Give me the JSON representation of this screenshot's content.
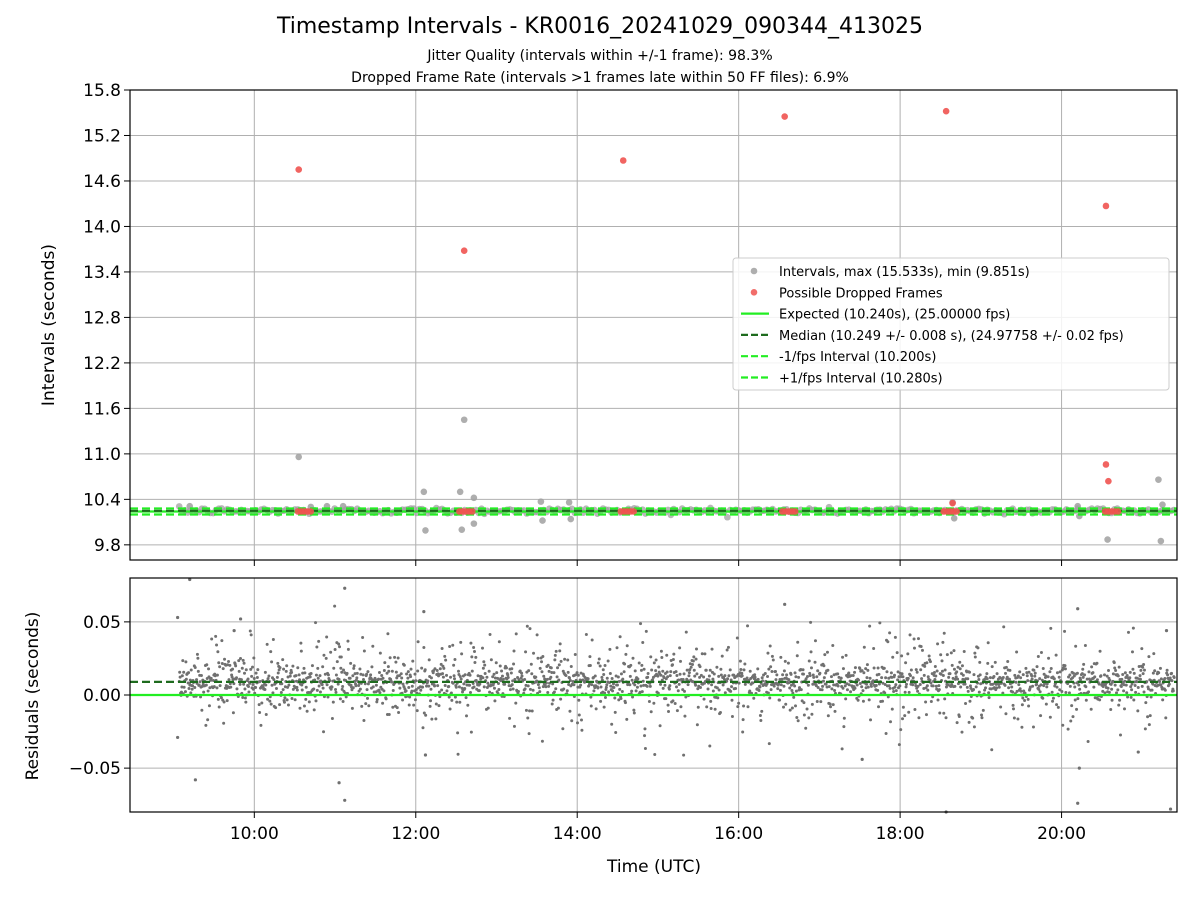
{
  "chart_data": [
    {
      "type": "scatter",
      "title": "Timestamp Intervals - KR0016_20241029_090344_413025",
      "subtitle_lines": [
        "Jitter Quality (intervals within +/-1 frame): 98.3%",
        "Dropped Frame Rate (intervals >1 frames late within 50 FF files): 6.9%"
      ],
      "xlabel": "",
      "ylabel": "Intervals (seconds)",
      "xlim_hours": [
        8.46,
        21.43
      ],
      "ylim": [
        9.6,
        15.8
      ],
      "yticks": [
        9.8,
        10.4,
        11.0,
        11.6,
        12.2,
        12.8,
        13.4,
        14.0,
        14.6,
        15.2,
        15.8
      ],
      "ytick_labels": [
        "9.8",
        "10.4",
        "11.0",
        "11.6",
        "12.2",
        "12.8",
        "13.4",
        "14.0",
        "14.6",
        "15.2",
        "15.8"
      ],
      "xticks_hours": [
        10,
        12,
        14,
        16,
        18,
        20
      ],
      "grid": true,
      "legend_position": "center-right",
      "legend": [
        {
          "label": "Intervals, max (15.533s), min (9.851s)",
          "kind": "marker",
          "color": "#a0a0a0"
        },
        {
          "label": "Possible Dropped Frames",
          "kind": "marker",
          "color": "#ef5350"
        },
        {
          "label": "Expected (10.240s), (25.00000 fps)",
          "kind": "solid",
          "color": "#22ee22"
        },
        {
          "label": "Median (10.249 +/- 0.008 s), (24.97758 +/- 0.02 fps)",
          "kind": "dashed",
          "color": "#1e6b1e"
        },
        {
          "label": "-1/fps Interval (10.200s)",
          "kind": "dashed",
          "color": "#22ee22"
        },
        {
          "label": "+1/fps Interval (10.280s)",
          "kind": "dashed",
          "color": "#22ee22"
        }
      ],
      "lines": {
        "expected": 10.24,
        "median": 10.249,
        "minus_one_fps": 10.2,
        "plus_one_fps": 10.28
      },
      "series": [
        {
          "name": "Intervals, max (15.533s), min (9.851s)",
          "color": "#a0a0a0",
          "band": {
            "x_range": [
              9.07,
              21.4
            ],
            "center": 10.249,
            "spread": 0.03
          },
          "points": [
            {
              "x": 9.2,
              "y": 10.31
            },
            {
              "x": 10.55,
              "y": 10.96
            },
            {
              "x": 10.7,
              "y": 10.3
            },
            {
              "x": 10.9,
              "y": 10.31
            },
            {
              "x": 11.1,
              "y": 10.31
            },
            {
              "x": 12.1,
              "y": 10.5
            },
            {
              "x": 12.12,
              "y": 9.99
            },
            {
              "x": 12.55,
              "y": 10.5
            },
            {
              "x": 12.57,
              "y": 10.0
            },
            {
              "x": 12.6,
              "y": 11.45
            },
            {
              "x": 12.72,
              "y": 10.42
            },
            {
              "x": 12.72,
              "y": 10.08
            },
            {
              "x": 13.55,
              "y": 10.37
            },
            {
              "x": 13.57,
              "y": 10.12
            },
            {
              "x": 13.9,
              "y": 10.36
            },
            {
              "x": 13.92,
              "y": 10.14
            },
            {
              "x": 18.65,
              "y": 10.36
            },
            {
              "x": 18.67,
              "y": 10.15
            },
            {
              "x": 20.2,
              "y": 10.31
            },
            {
              "x": 20.22,
              "y": 10.18
            },
            {
              "x": 20.57,
              "y": 9.87
            },
            {
              "x": 21.2,
              "y": 10.66
            },
            {
              "x": 21.23,
              "y": 9.85
            },
            {
              "x": 21.25,
              "y": 10.33
            }
          ]
        },
        {
          "name": "Possible Dropped Frames",
          "color": "#ef5350",
          "points": [
            {
              "x": 10.55,
              "y": 14.75
            },
            {
              "x": 12.6,
              "y": 13.68
            },
            {
              "x": 14.57,
              "y": 14.87
            },
            {
              "x": 16.57,
              "y": 15.45
            },
            {
              "x": 18.57,
              "y": 15.52
            },
            {
              "x": 20.55,
              "y": 14.27
            },
            {
              "x": 20.55,
              "y": 10.86
            },
            {
              "x": 20.58,
              "y": 10.64
            },
            {
              "x": 18.65,
              "y": 10.35
            },
            {
              "x": 10.54,
              "y": 10.24
            },
            {
              "x": 10.58,
              "y": 10.24
            },
            {
              "x": 10.62,
              "y": 10.24
            },
            {
              "x": 10.66,
              "y": 10.24
            },
            {
              "x": 10.7,
              "y": 10.24
            },
            {
              "x": 12.54,
              "y": 10.24
            },
            {
              "x": 12.58,
              "y": 10.24
            },
            {
              "x": 12.62,
              "y": 10.24
            },
            {
              "x": 12.66,
              "y": 10.24
            },
            {
              "x": 12.7,
              "y": 10.24
            },
            {
              "x": 14.54,
              "y": 10.24
            },
            {
              "x": 14.58,
              "y": 10.24
            },
            {
              "x": 14.62,
              "y": 10.24
            },
            {
              "x": 14.66,
              "y": 10.24
            },
            {
              "x": 14.7,
              "y": 10.24
            },
            {
              "x": 16.54,
              "y": 10.24
            },
            {
              "x": 16.58,
              "y": 10.24
            },
            {
              "x": 16.62,
              "y": 10.24
            },
            {
              "x": 16.66,
              "y": 10.24
            },
            {
              "x": 16.7,
              "y": 10.24
            },
            {
              "x": 18.54,
              "y": 10.24
            },
            {
              "x": 18.58,
              "y": 10.24
            },
            {
              "x": 18.62,
              "y": 10.24
            },
            {
              "x": 18.66,
              "y": 10.24
            },
            {
              "x": 18.7,
              "y": 10.24
            },
            {
              "x": 20.54,
              "y": 10.24
            },
            {
              "x": 20.58,
              "y": 10.24
            },
            {
              "x": 20.62,
              "y": 10.24
            },
            {
              "x": 20.66,
              "y": 10.24
            },
            {
              "x": 20.7,
              "y": 10.24
            }
          ]
        }
      ]
    },
    {
      "type": "scatter",
      "ylabel": "Residuals (seconds)",
      "xlabel": "Time (UTC)",
      "xlim_hours": [
        8.46,
        21.43
      ],
      "ylim": [
        -0.08,
        0.08
      ],
      "yticks": [
        -0.05,
        0.0,
        0.05
      ],
      "ytick_labels": [
        "−0.05",
        "0.00",
        "0.05"
      ],
      "xticks_hours": [
        10,
        12,
        14,
        16,
        18,
        20
      ],
      "xtick_labels": [
        "10:00",
        "12:00",
        "14:00",
        "16:00",
        "18:00",
        "20:00"
      ],
      "grid": true,
      "lines": {
        "expected": 0.0,
        "median": 0.009
      },
      "series": [
        {
          "name": "Residuals",
          "color": "#707070",
          "band": {
            "x_range": [
              9.07,
              21.4
            ],
            "center": 0.009,
            "core_spread": 0.005,
            "spread_edges": 0.012,
            "spread_middle": 0.018
          },
          "points": [
            {
              "x": 9.2,
              "y": 0.079
            },
            {
              "x": 9.05,
              "y": 0.053
            },
            {
              "x": 9.27,
              "y": -0.058
            },
            {
              "x": 9.05,
              "y": -0.029
            },
            {
              "x": 9.83,
              "y": 0.052
            },
            {
              "x": 9.75,
              "y": 0.044
            },
            {
              "x": 11.12,
              "y": 0.073
            },
            {
              "x": 11.05,
              "y": -0.06
            },
            {
              "x": 11.12,
              "y": -0.072
            },
            {
              "x": 12.1,
              "y": 0.057
            },
            {
              "x": 12.12,
              "y": -0.041
            },
            {
              "x": 16.57,
              "y": 0.062
            },
            {
              "x": 17.53,
              "y": -0.044
            },
            {
              "x": 18.57,
              "y": -0.08
            },
            {
              "x": 20.2,
              "y": 0.059
            },
            {
              "x": 20.22,
              "y": -0.05
            },
            {
              "x": 20.2,
              "y": -0.074
            },
            {
              "x": 21.35,
              "y": -0.078
            },
            {
              "x": 21.3,
              "y": 0.044
            },
            {
              "x": 20.95,
              "y": -0.039
            }
          ]
        }
      ]
    }
  ]
}
